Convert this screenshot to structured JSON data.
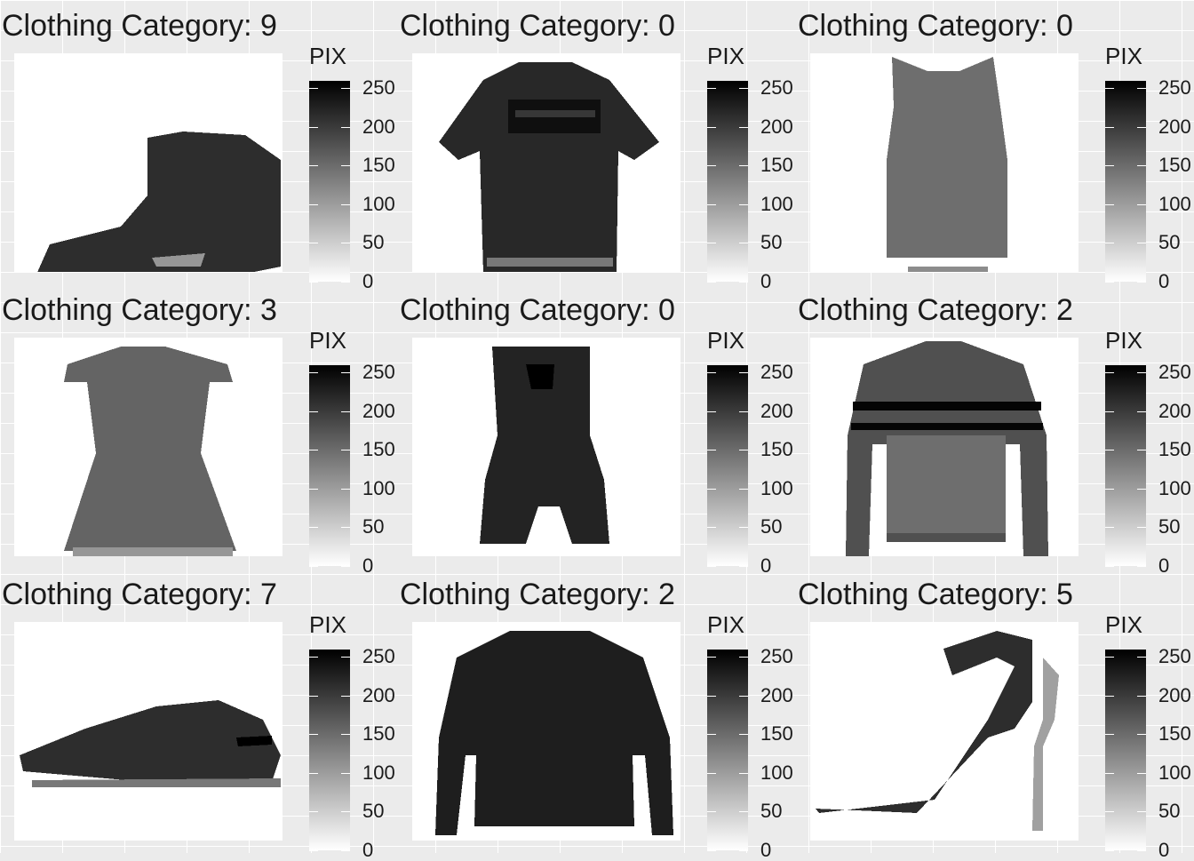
{
  "chart_data": [
    {
      "type": "heatmap",
      "title": "Clothing Category: 9",
      "item": "ankle-boot",
      "legend": {
        "title": "PIX",
        "ticks": [
          250,
          200,
          150,
          100,
          50,
          0
        ],
        "range": [
          0,
          255
        ],
        "low_color": "#ffffff",
        "high_color": "#000000"
      }
    },
    {
      "type": "heatmap",
      "title": "Clothing Category: 0",
      "item": "t-shirt",
      "legend": {
        "title": "PIX",
        "ticks": [
          250,
          200,
          150,
          100,
          50,
          0
        ],
        "range": [
          0,
          255
        ],
        "low_color": "#ffffff",
        "high_color": "#000000"
      }
    },
    {
      "type": "heatmap",
      "title": "Clothing Category: 0",
      "item": "tank-top",
      "legend": {
        "title": "PIX",
        "ticks": [
          250,
          200,
          150,
          100,
          50,
          0
        ],
        "range": [
          0,
          255
        ],
        "low_color": "#ffffff",
        "high_color": "#000000"
      }
    },
    {
      "type": "heatmap",
      "title": "Clothing Category: 3",
      "item": "dress",
      "legend": {
        "title": "PIX",
        "ticks": [
          250,
          200,
          150,
          100,
          50,
          0
        ],
        "range": [
          0,
          255
        ],
        "low_color": "#ffffff",
        "high_color": "#000000"
      }
    },
    {
      "type": "heatmap",
      "title": "Clothing Category: 0",
      "item": "romper",
      "legend": {
        "title": "PIX",
        "ticks": [
          250,
          200,
          150,
          100,
          50,
          0
        ],
        "range": [
          0,
          255
        ],
        "low_color": "#ffffff",
        "high_color": "#000000"
      }
    },
    {
      "type": "heatmap",
      "title": "Clothing Category: 2",
      "item": "striped-sweater",
      "legend": {
        "title": "PIX",
        "ticks": [
          250,
          200,
          150,
          100,
          50,
          0
        ],
        "range": [
          0,
          255
        ],
        "low_color": "#ffffff",
        "high_color": "#000000"
      }
    },
    {
      "type": "heatmap",
      "title": "Clothing Category: 7",
      "item": "sneaker",
      "legend": {
        "title": "PIX",
        "ticks": [
          250,
          200,
          150,
          100,
          50,
          0
        ],
        "range": [
          0,
          255
        ],
        "low_color": "#ffffff",
        "high_color": "#000000"
      }
    },
    {
      "type": "heatmap",
      "title": "Clothing Category: 2",
      "item": "sweater",
      "legend": {
        "title": "PIX",
        "ticks": [
          250,
          200,
          150,
          100,
          50,
          0
        ],
        "range": [
          0,
          255
        ],
        "low_color": "#ffffff",
        "high_color": "#000000"
      }
    },
    {
      "type": "heatmap",
      "title": "Clothing Category: 5",
      "item": "sandal",
      "legend": {
        "title": "PIX",
        "ticks": [
          250,
          200,
          150,
          100,
          50,
          0
        ],
        "range": [
          0,
          255
        ],
        "low_color": "#ffffff",
        "high_color": "#000000"
      }
    }
  ]
}
